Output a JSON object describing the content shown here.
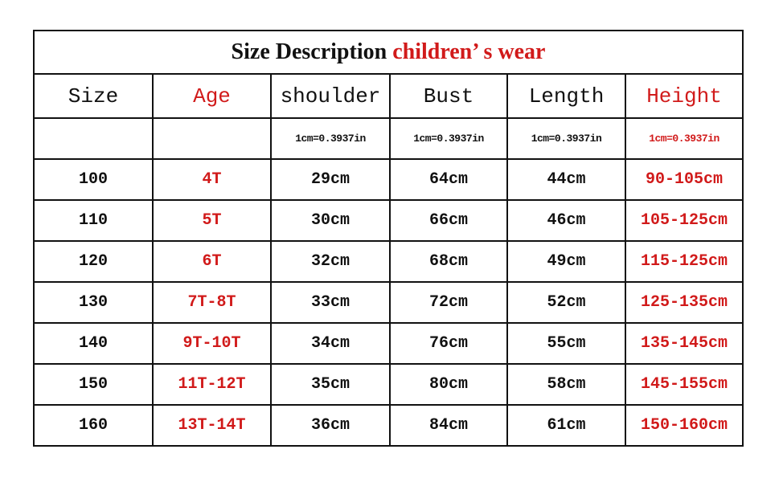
{
  "title": {
    "part1": "Size Description",
    "part2": "children’ s wear"
  },
  "headers": [
    "Size",
    "Age",
    "shoulder",
    "Bust",
    "Length",
    "Height"
  ],
  "units": [
    "",
    "",
    "1cm=0.3937in",
    "1cm=0.3937in",
    "1cm=0.3937in",
    "1cm=0.3937in"
  ],
  "rows": [
    [
      "100",
      "4T",
      "29cm",
      "64cm",
      "44cm",
      "90-105cm"
    ],
    [
      "110",
      "5T",
      "30cm",
      "66cm",
      "46cm",
      "105-125cm"
    ],
    [
      "120",
      "6T",
      "32cm",
      "68cm",
      "49cm",
      "115-125cm"
    ],
    [
      "130",
      "7T-8T",
      "33cm",
      "72cm",
      "52cm",
      "125-135cm"
    ],
    [
      "140",
      "9T-10T",
      "34cm",
      "76cm",
      "55cm",
      "135-145cm"
    ],
    [
      "150",
      "11T-12T",
      "35cm",
      "80cm",
      "58cm",
      "145-155cm"
    ],
    [
      "160",
      "13T-14T",
      "36cm",
      "84cm",
      "61cm",
      "150-160cm"
    ]
  ],
  "colors": {
    "accent": "#d11a1a",
    "text": "#111111"
  }
}
